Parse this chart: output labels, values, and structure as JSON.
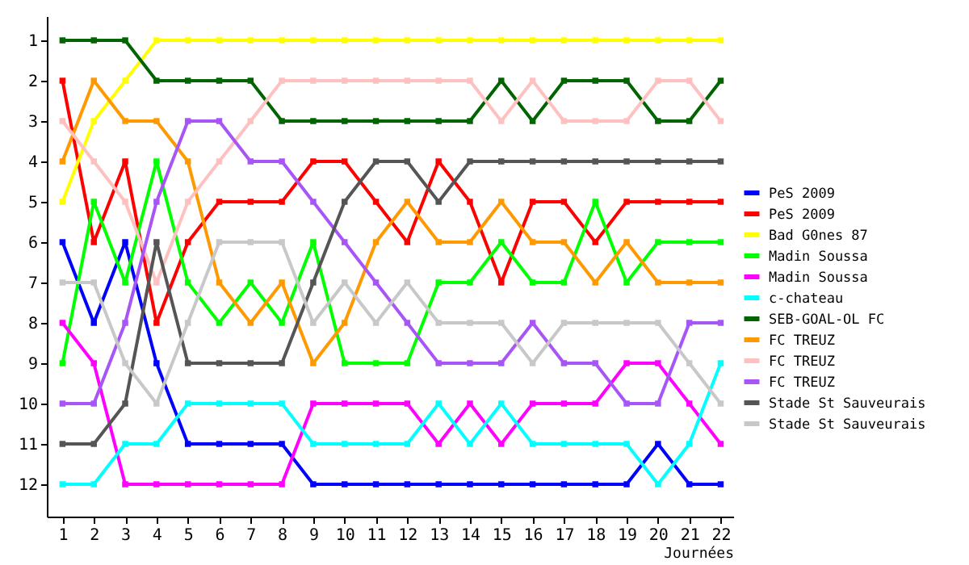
{
  "chart_data": {
    "type": "line",
    "xlabel": "Journées",
    "x": [
      1,
      2,
      3,
      4,
      5,
      6,
      7,
      8,
      9,
      10,
      11,
      12,
      13,
      14,
      15,
      16,
      17,
      18,
      19,
      20,
      21,
      22
    ],
    "xlim": [
      0.5,
      22.4
    ],
    "xticks": [
      1,
      2,
      3,
      4,
      5,
      6,
      7,
      8,
      9,
      10,
      11,
      12,
      13,
      14,
      15,
      16,
      17,
      18,
      19,
      20,
      21,
      22
    ],
    "ylim": [
      12.8,
      0.4
    ],
    "yticks": [
      1,
      2,
      3,
      4,
      5,
      6,
      7,
      8,
      9,
      10,
      11,
      12
    ],
    "grid": false,
    "legend": "right",
    "marker": "square",
    "line_style": "solid",
    "series": [
      {
        "name": "PeS 2009",
        "color": "#0000ff",
        "values": [
          6,
          8,
          6,
          9,
          11,
          11,
          11,
          11,
          12,
          12,
          12,
          12,
          12,
          12,
          12,
          12,
          12,
          12,
          12,
          11,
          12,
          12
        ]
      },
      {
        "name": "PeS 2009",
        "color": "#ff0000",
        "values": [
          2,
          6,
          4,
          8,
          6,
          5,
          5,
          5,
          4,
          4,
          5,
          6,
          4,
          5,
          7,
          5,
          5,
          6,
          5,
          5,
          5,
          5
        ]
      },
      {
        "name": "Bad G0nes 87",
        "color": "#ffff00",
        "values": [
          5,
          3,
          2,
          1,
          1,
          1,
          1,
          1,
          1,
          1,
          1,
          1,
          1,
          1,
          1,
          1,
          1,
          1,
          1,
          1,
          1,
          1
        ]
      },
      {
        "name": "Madin Soussa",
        "color": "#00ff00",
        "values": [
          9,
          5,
          7,
          4,
          7,
          8,
          7,
          8,
          6,
          9,
          9,
          9,
          7,
          7,
          6,
          7,
          7,
          5,
          7,
          6,
          6,
          6
        ]
      },
      {
        "name": "Madin Soussa",
        "color": "#ff00ff",
        "values": [
          8,
          9,
          12,
          12,
          12,
          12,
          12,
          12,
          10,
          10,
          10,
          10,
          11,
          10,
          11,
          10,
          10,
          10,
          9,
          9,
          10,
          11
        ]
      },
      {
        "name": "c-chateau",
        "color": "#00ffff",
        "values": [
          12,
          12,
          11,
          11,
          10,
          10,
          10,
          10,
          11,
          11,
          11,
          11,
          10,
          11,
          10,
          11,
          11,
          11,
          11,
          12,
          11,
          9
        ]
      },
      {
        "name": "SEB-GOAL-OL FC",
        "color": "#006400",
        "values": [
          1,
          1,
          1,
          2,
          2,
          2,
          2,
          3,
          3,
          3,
          3,
          3,
          3,
          3,
          2,
          3,
          2,
          2,
          2,
          3,
          3,
          2
        ]
      },
      {
        "name": "FC TREUZ",
        "color": "#ff9900",
        "values": [
          4,
          2,
          3,
          3,
          4,
          7,
          8,
          7,
          9,
          8,
          6,
          5,
          6,
          6,
          5,
          6,
          6,
          7,
          6,
          7,
          7,
          7
        ]
      },
      {
        "name": "FC TREUZ",
        "color": "#ffc0c0",
        "values": [
          3,
          4,
          5,
          7,
          5,
          4,
          3,
          2,
          2,
          2,
          2,
          2,
          2,
          2,
          3,
          2,
          3,
          3,
          3,
          2,
          2,
          3
        ]
      },
      {
        "name": "FC TREUZ",
        "color": "#a855f7",
        "values": [
          10,
          10,
          8,
          5,
          3,
          3,
          4,
          4,
          5,
          6,
          7,
          8,
          9,
          9,
          9,
          8,
          9,
          9,
          10,
          10,
          8,
          8
        ]
      },
      {
        "name": "Stade St Sauveurais",
        "color": "#555555",
        "values": [
          11,
          11,
          10,
          6,
          9,
          9,
          9,
          9,
          7,
          5,
          4,
          4,
          5,
          4,
          4,
          4,
          4,
          4,
          4,
          4,
          4,
          4
        ]
      },
      {
        "name": "Stade St Sauveurais",
        "color": "#c8c8c8",
        "values": [
          7,
          7,
          9,
          10,
          8,
          6,
          6,
          6,
          8,
          7,
          8,
          7,
          8,
          8,
          8,
          9,
          8,
          8,
          8,
          8,
          9,
          10
        ]
      }
    ]
  }
}
